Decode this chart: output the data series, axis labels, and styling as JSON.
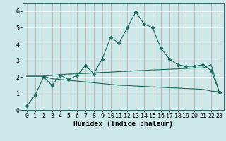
{
  "x": [
    0,
    1,
    2,
    3,
    4,
    5,
    6,
    7,
    8,
    9,
    10,
    11,
    12,
    13,
    14,
    15,
    16,
    17,
    18,
    19,
    20,
    21,
    22,
    23
  ],
  "line1_y": [
    0.25,
    0.9,
    2.0,
    1.5,
    2.1,
    1.85,
    2.1,
    2.7,
    2.2,
    3.1,
    4.4,
    4.05,
    5.0,
    5.95,
    5.2,
    5.0,
    3.75,
    3.1,
    2.75,
    2.65,
    2.65,
    2.75,
    2.4,
    1.05
  ],
  "line2_y": [
    2.05,
    2.05,
    2.05,
    1.9,
    1.85,
    1.8,
    1.75,
    1.7,
    1.65,
    1.6,
    1.55,
    1.5,
    1.48,
    1.45,
    1.43,
    1.4,
    1.38,
    1.35,
    1.33,
    1.3,
    1.28,
    1.25,
    1.15,
    1.1
  ],
  "line3_y": [
    2.05,
    2.05,
    2.05,
    2.1,
    2.15,
    2.18,
    2.2,
    2.22,
    2.25,
    2.28,
    2.3,
    2.33,
    2.35,
    2.38,
    2.4,
    2.43,
    2.45,
    2.47,
    2.5,
    2.52,
    2.55,
    2.55,
    2.75,
    1.0
  ],
  "color": "#1a6b5a",
  "bg_color": "#cce8e8",
  "grid_color": "#b0d4d4",
  "xlabel": "Humidex (Indice chaleur)",
  "ylim": [
    0,
    6.5
  ],
  "xlim": [
    -0.5,
    23.5
  ],
  "yticks": [
    0,
    1,
    2,
    3,
    4,
    5,
    6
  ],
  "xticks": [
    0,
    1,
    2,
    3,
    4,
    5,
    6,
    7,
    8,
    9,
    10,
    11,
    12,
    13,
    14,
    15,
    16,
    17,
    18,
    19,
    20,
    21,
    22,
    23
  ],
  "xlabel_fontsize": 7,
  "tick_fontsize": 6,
  "marker": "D",
  "markersize": 2.5
}
